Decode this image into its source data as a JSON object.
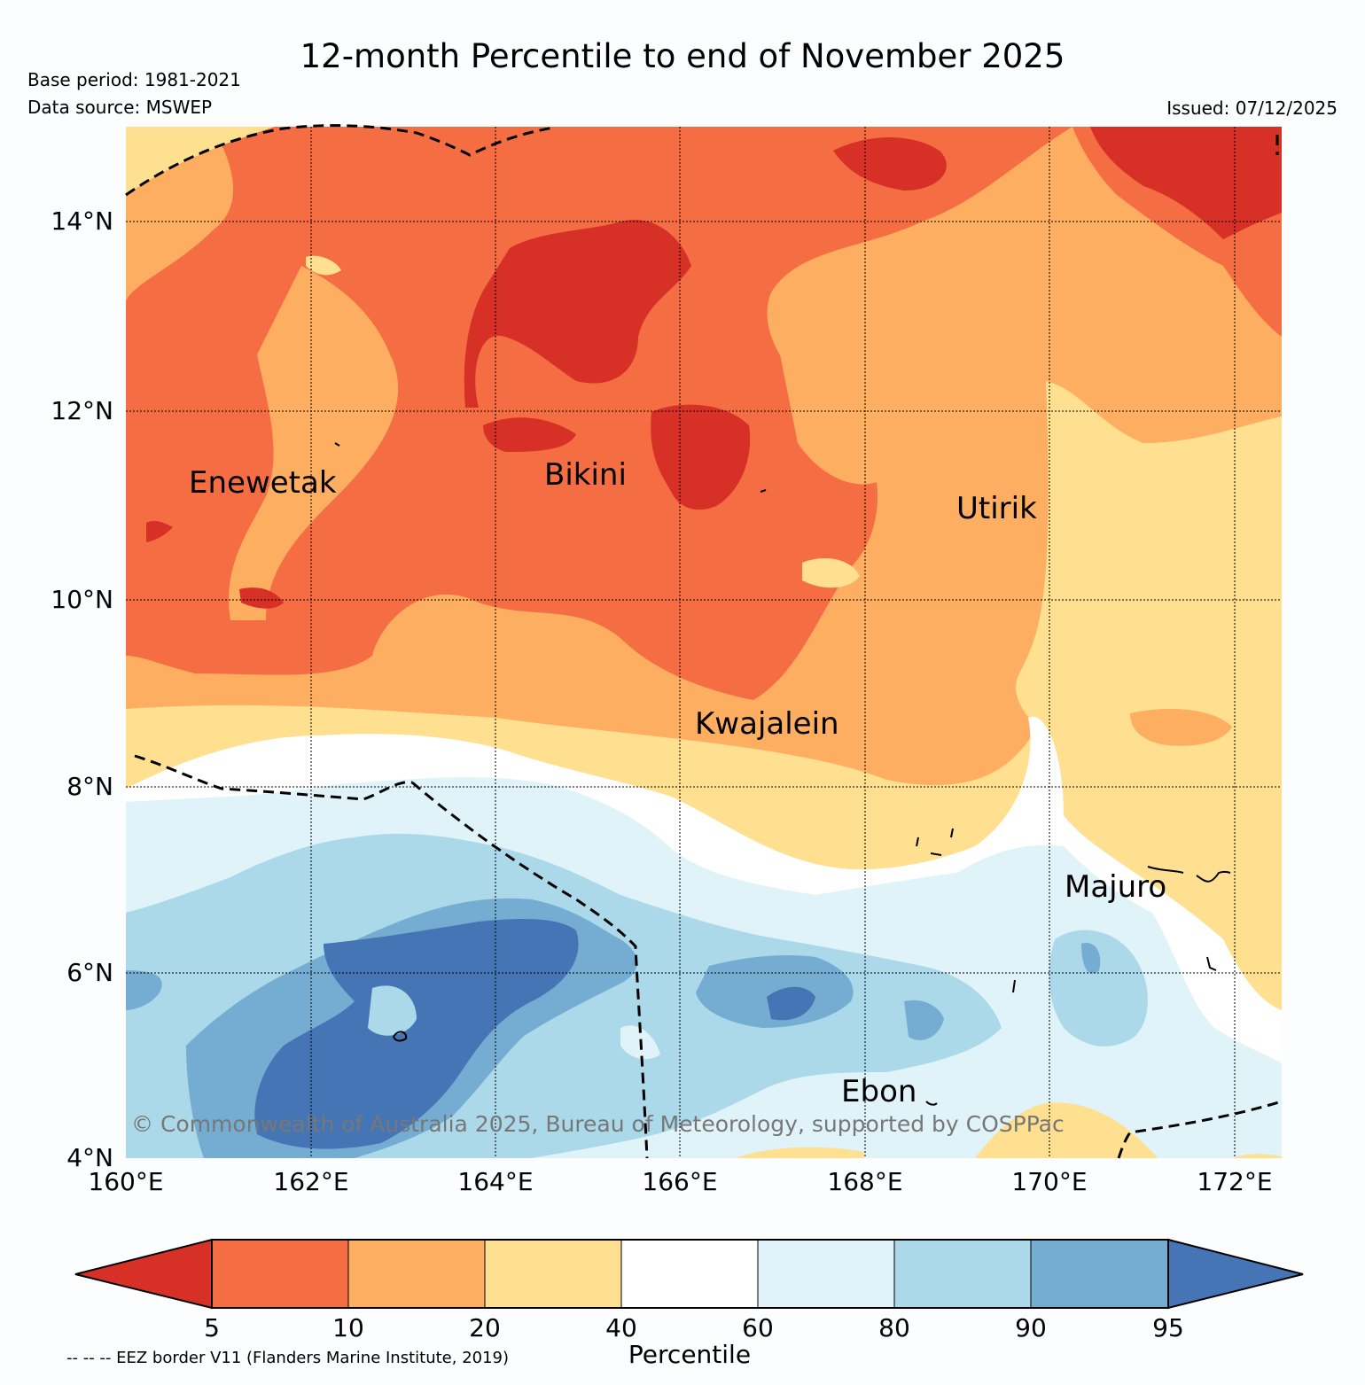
{
  "header": {
    "title": "12-month Percentile to end of November 2025",
    "base_period": "Base period: 1981-2021",
    "data_source": "Data source: MSWEP",
    "issued": "Issued: 07/12/2025"
  },
  "map": {
    "lat_labels": [
      "14°N",
      "12°N",
      "10°N",
      "8°N",
      "6°N",
      "4°N"
    ],
    "lon_labels": [
      "160°E",
      "162°E",
      "164°E",
      "166°E",
      "168°E",
      "170°E",
      "172°E"
    ],
    "places": [
      {
        "name": "Enewetak"
      },
      {
        "name": "Bikini"
      },
      {
        "name": "Utirik"
      },
      {
        "name": "Kwajalein"
      },
      {
        "name": "Majuro"
      },
      {
        "name": "Ebon"
      }
    ],
    "copyright": "© Commonwealth of Australia 2025, Bureau of Meteorology, supported by COSPPac"
  },
  "colorbar": {
    "label": "Percentile",
    "ticks": [
      "5",
      "10",
      "20",
      "40",
      "60",
      "80",
      "90",
      "95"
    ],
    "colors": [
      "#d73027",
      "#f46d43",
      "#fdae61",
      "#fee090",
      "#ffffff",
      "#e0f3f8",
      "#abd9e9",
      "#74add1",
      "#4575b4"
    ]
  },
  "footer": {
    "eez_note": "-- -- -- EEZ border V11 (Flanders Marine Institute, 2019)"
  }
}
